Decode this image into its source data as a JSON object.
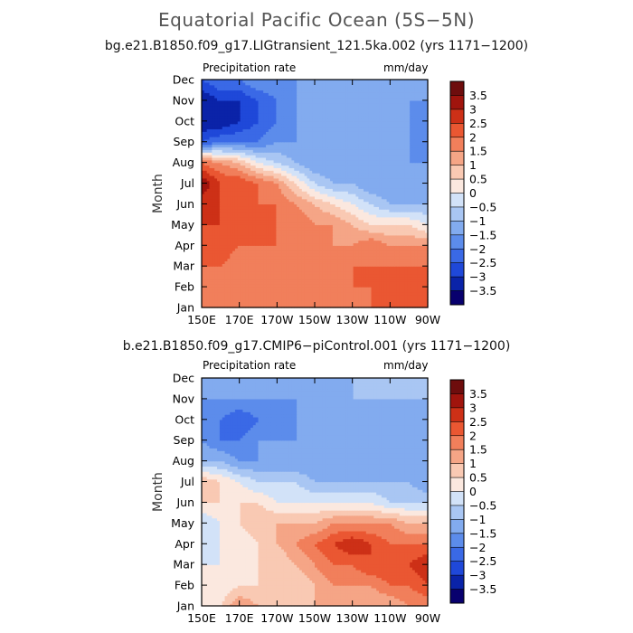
{
  "title": "Equatorial Pacific Ocean (5S−5N)",
  "colors": {
    "levels": [
      "#08006e",
      "#0a23a8",
      "#1f48d9",
      "#3a69e6",
      "#5c8ceb",
      "#82abef",
      "#a9c6f3",
      "#d2e2f8",
      "#fbe8df",
      "#f9c9b3",
      "#f5a586",
      "#f17f5b",
      "#ea5732",
      "#cd3017",
      "#a0140d",
      "#6e0d0d"
    ]
  },
  "chart_data": [
    {
      "type": "heatmap",
      "title": "bg.e21.B1850.f09_g17.LIGtransient_121.5ka.002 (yrs 1171−1200)",
      "left_label": "Precipitation rate",
      "right_label": "mm/day",
      "xlabel": "",
      "ylabel": "Month",
      "x_ticks": [
        "150E",
        "170E",
        "170W",
        "150W",
        "130W",
        "110W",
        "90W"
      ],
      "y_ticks": [
        "Jan",
        "Feb",
        "Mar",
        "Apr",
        "May",
        "Jun",
        "Jul",
        "Aug",
        "Sep",
        "Oct",
        "Nov",
        "Dec"
      ],
      "colorbar_labels": [
        "3.5",
        "3",
        "2.5",
        "2",
        "1.5",
        "1",
        "0.5",
        "0",
        "−0.5",
        "−1",
        "−1.5",
        "−2",
        "−2.5",
        "−3",
        "−3.5"
      ],
      "values": [
        [
          1.5,
          1.5,
          1.5,
          1.5,
          1.5,
          1.5,
          1.5,
          1.5,
          1.5,
          2.0,
          2.0,
          2.0,
          2.0
        ],
        [
          2.0,
          1.5,
          1.5,
          1.5,
          1.5,
          1.5,
          1.5,
          1.5,
          2.0,
          2.0,
          2.0,
          2.0,
          2.5
        ],
        [
          2.0,
          2.0,
          1.5,
          1.5,
          1.5,
          1.5,
          1.5,
          1.5,
          2.0,
          2.0,
          2.0,
          2.0,
          2.0
        ],
        [
          2.0,
          2.5,
          2.0,
          2.0,
          2.0,
          1.5,
          1.5,
          1.5,
          1.5,
          2.0,
          1.5,
          1.5,
          1.5
        ],
        [
          2.5,
          2.5,
          2.0,
          2.0,
          2.0,
          2.0,
          1.5,
          1.5,
          1.0,
          0.5,
          0.5,
          0.5,
          0.0
        ],
        [
          2.5,
          2.5,
          2.0,
          2.0,
          2.0,
          1.5,
          1.0,
          0.5,
          0.0,
          -0.5,
          -1.0,
          -1.0,
          -1.0
        ],
        [
          3.5,
          2.5,
          2.5,
          2.0,
          1.5,
          0.5,
          -0.5,
          -1.0,
          -1.0,
          -1.5,
          -1.5,
          -1.5,
          -1.5
        ],
        [
          2.0,
          1.5,
          1.0,
          0.0,
          -0.5,
          -1.0,
          -1.5,
          -1.5,
          -1.5,
          -1.5,
          -1.5,
          -1.5,
          -1.5
        ],
        [
          -2.5,
          -2.0,
          -2.0,
          -2.0,
          -1.5,
          -1.5,
          -1.5,
          -1.5,
          -1.5,
          -1.5,
          -1.5,
          -1.5,
          -2.0
        ],
        [
          -3.5,
          -3.5,
          -3.0,
          -2.5,
          -2.0,
          -1.5,
          -1.5,
          -1.5,
          -1.5,
          -1.5,
          -1.5,
          -1.5,
          -2.0
        ],
        [
          -3.5,
          -3.0,
          -3.0,
          -2.5,
          -2.0,
          -1.5,
          -1.5,
          -1.5,
          -1.5,
          -1.5,
          -1.5,
          -1.5,
          -1.5
        ],
        [
          -2.5,
          -2.0,
          -2.0,
          -1.5,
          -1.5,
          -1.5,
          -1.5,
          -1.0,
          -1.0,
          -1.0,
          -1.0,
          -1.0,
          -1.0
        ]
      ]
    },
    {
      "type": "heatmap",
      "title": "b.e21.B1850.f09_g17.CMIP6−piControl.001 (yrs 1171−1200)",
      "left_label": "Precipitation rate",
      "right_label": "mm/day",
      "xlabel": "",
      "ylabel": "Month",
      "x_ticks": [
        "150E",
        "170E",
        "170W",
        "150W",
        "130W",
        "110W",
        "90W"
      ],
      "y_ticks": [
        "Jan",
        "Feb",
        "Mar",
        "Apr",
        "May",
        "Jun",
        "Jul",
        "Aug",
        "Sep",
        "Oct",
        "Nov",
        "Dec"
      ],
      "colorbar_labels": [
        "3.5",
        "3",
        "2.5",
        "2",
        "1.5",
        "1",
        "0.5",
        "0",
        "−0.5",
        "−1",
        "−1.5",
        "−2",
        "−2.5",
        "−3",
        "−3.5"
      ],
      "values": [
        [
          0.5,
          0.5,
          1.5,
          1.0,
          0.5,
          0.5,
          1.0,
          1.0,
          1.0,
          1.0,
          1.0,
          1.5,
          1.5
        ],
        [
          0.0,
          0.0,
          0.5,
          0.5,
          0.5,
          0.5,
          1.0,
          1.5,
          1.5,
          1.5,
          2.0,
          2.0,
          2.5
        ],
        [
          0.0,
          0.0,
          0.0,
          0.5,
          0.5,
          1.0,
          1.5,
          2.0,
          2.0,
          2.5,
          2.5,
          2.5,
          3.0
        ],
        [
          -0.5,
          0.0,
          0.0,
          0.5,
          1.0,
          1.5,
          2.0,
          2.5,
          3.0,
          2.5,
          2.0,
          2.0,
          2.0
        ],
        [
          -0.5,
          0.0,
          0.5,
          1.0,
          1.0,
          1.0,
          1.0,
          1.5,
          1.5,
          1.5,
          1.5,
          1.0,
          1.0
        ],
        [
          0.5,
          0.5,
          0.5,
          0.5,
          0.0,
          0.0,
          0.0,
          0.0,
          0.0,
          0.0,
          -0.5,
          -0.5,
          -0.5
        ],
        [
          1.0,
          0.5,
          0.0,
          -0.5,
          -0.5,
          -0.5,
          -1.0,
          -1.0,
          -1.0,
          -1.0,
          -1.0,
          -1.0,
          -1.5
        ],
        [
          -1.0,
          -1.0,
          -1.5,
          -1.5,
          -1.5,
          -1.5,
          -1.5,
          -1.5,
          -1.5,
          -1.5,
          -1.5,
          -1.5,
          -1.5
        ],
        [
          -1.5,
          -2.0,
          -2.0,
          -1.5,
          -1.5,
          -1.5,
          -1.5,
          -1.5,
          -1.5,
          -1.5,
          -1.5,
          -1.5,
          -1.5
        ],
        [
          -2.0,
          -2.0,
          -2.5,
          -2.0,
          -2.0,
          -1.5,
          -1.5,
          -1.5,
          -1.5,
          -1.5,
          -1.5,
          -1.5,
          -1.5
        ],
        [
          -1.5,
          -1.5,
          -1.5,
          -1.5,
          -1.5,
          -1.5,
          -1.5,
          -1.5,
          -1.0,
          -1.0,
          -1.0,
          -1.0,
          -1.0
        ],
        [
          -1.0,
          -1.0,
          -1.0,
          -1.0,
          -1.0,
          -1.0,
          -1.0,
          -1.0,
          -1.0,
          -1.0,
          -1.0,
          -1.0,
          -1.0
        ]
      ]
    }
  ]
}
